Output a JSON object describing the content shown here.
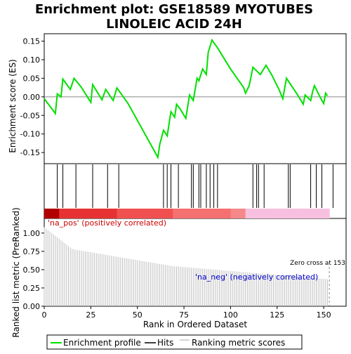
{
  "chart_data": {
    "type": "line",
    "title_line1": "Enrichment plot: GSE18589 MYOTUBES",
    "title_line2": "LINOLEIC ACID 24H",
    "top_panel": {
      "ylabel": "Enrichment score (ES)",
      "ylim": [
        -0.18,
        0.17
      ],
      "yticks": [
        -0.15,
        -0.1,
        -0.05,
        0.0,
        0.05,
        0.1,
        0.15
      ],
      "ytick_labels": [
        "-0.15",
        "-0.10",
        "-0.05",
        "0.00",
        "0.05",
        "0.10",
        "0.15"
      ],
      "series_color": "#00e000",
      "es_x": [
        0,
        6,
        7,
        9,
        10,
        14,
        16,
        20,
        25,
        26,
        31,
        33,
        37,
        39,
        45,
        61,
        62,
        64,
        66,
        68,
        70,
        71,
        73,
        76,
        78,
        80,
        82,
        83,
        85,
        87,
        88,
        89,
        90,
        93,
        100,
        107,
        108,
        110,
        112,
        114,
        116,
        119,
        122,
        126,
        128,
        130,
        134,
        136,
        139,
        140,
        143,
        144,
        145,
        148,
        150,
        151,
        152
      ],
      "es_y": [
        -0.005,
        -0.045,
        0.008,
        0.0,
        0.048,
        0.02,
        0.05,
        0.025,
        -0.015,
        0.033,
        -0.008,
        0.02,
        -0.01,
        0.024,
        -0.018,
        -0.163,
        -0.128,
        -0.09,
        -0.105,
        -0.04,
        -0.055,
        -0.02,
        -0.033,
        -0.058,
        0.005,
        -0.01,
        0.05,
        0.043,
        0.075,
        0.06,
        0.12,
        0.135,
        0.153,
        0.132,
        0.075,
        0.025,
        0.01,
        0.03,
        0.08,
        0.07,
        0.06,
        0.085,
        0.06,
        0.02,
        -0.005,
        0.05,
        0.02,
        0.005,
        -0.02,
        0.005,
        -0.01,
        0.013,
        0.03,
        0.0,
        -0.018,
        0.01,
        0.003
      ]
    },
    "hits_panel": {
      "hit_positions": [
        7,
        10,
        17,
        26,
        34,
        40,
        64,
        66,
        68,
        72,
        79,
        80,
        83,
        84,
        87,
        89,
        91,
        93,
        112,
        114,
        115,
        118,
        131,
        132,
        143,
        146,
        149,
        155
      ]
    },
    "bottom_panel": {
      "ylabel": "Ranked list metric (PreRanked)",
      "xlabel": "Rank in Ordered Dataset",
      "ylim": [
        0,
        1.2
      ],
      "yticks": [
        0,
        0.25,
        0.5,
        0.75,
        1.0
      ],
      "ytick_labels": [
        "0.00",
        "0.25",
        "0.50",
        "0.75",
        "1.00"
      ],
      "xlim": [
        0,
        162
      ],
      "xticks": [
        0,
        25,
        50,
        75,
        100,
        125,
        150
      ],
      "xtick_labels": [
        "0",
        "25",
        "50",
        "75",
        "100",
        "125",
        "150"
      ],
      "pos_label": "'na_pos' (positively correlated)",
      "neg_label": "'na_neg' (negatively correlated)",
      "zero_cross_label": "Zero cross at 153",
      "zero_cross_rank": 153,
      "n_ranks": 153,
      "metric_start": 1.08,
      "metric_mid": 0.55,
      "metric_end": 0.37
    },
    "legend": {
      "items": [
        {
          "label": "Enrichment profile",
          "color": "#00e000"
        },
        {
          "label": "Hits",
          "color": "#000000"
        },
        {
          "label": "Ranking metric scores",
          "color": "#c8c8c8"
        }
      ]
    }
  }
}
